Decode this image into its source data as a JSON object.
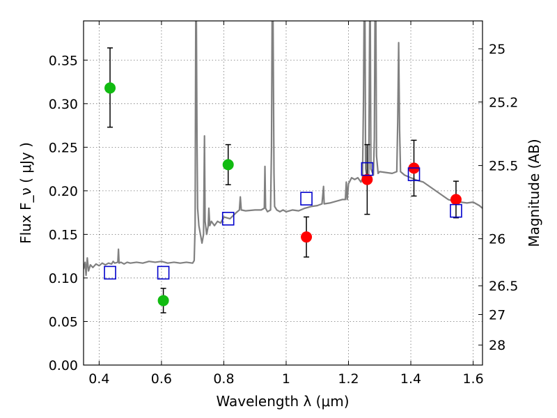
{
  "chart_data": {
    "type": "scatter",
    "xlabel": "Wavelength  λ (μm)",
    "ylabel": "Flux  F_ν  ( μJy )",
    "ylabel_right": "Magnitude (AB)",
    "xlim": [
      0.35,
      1.63
    ],
    "ylim": [
      0.0,
      0.395
    ],
    "x_ticks": [
      0.4,
      0.6,
      0.8,
      1.0,
      1.2,
      1.4,
      1.6
    ],
    "x_tick_labels": [
      "0.4",
      "0.6",
      "0.8",
      "1",
      "1.2",
      "1.4",
      "1.6"
    ],
    "y_ticks": [
      0.0,
      0.05,
      0.1,
      0.15,
      0.2,
      0.25,
      0.3,
      0.35
    ],
    "y_tick_labels": [
      "0.00",
      "0.05",
      "0.10",
      "0.15",
      "0.20",
      "0.25",
      "0.30",
      "0.35"
    ],
    "right_ticks": [
      {
        "label": "25",
        "flux": 0.363
      },
      {
        "label": "25.2",
        "flux": 0.302
      },
      {
        "label": "25.5",
        "flux": 0.229
      },
      {
        "label": "26",
        "flux": 0.145
      },
      {
        "label": "26.5",
        "flux": 0.091
      },
      {
        "label": "27",
        "flux": 0.058
      },
      {
        "label": "28",
        "flux": 0.023
      }
    ],
    "grid": true,
    "series": [
      {
        "color": "#11bb11",
        "marker": "circle",
        "points": [
          {
            "x": 0.435,
            "y": 0.318,
            "err": [
              0.273,
              0.364
            ]
          },
          {
            "x": 0.606,
            "y": 0.074,
            "err": [
              0.06,
              0.088
            ]
          },
          {
            "x": 0.814,
            "y": 0.23,
            "err": [
              0.207,
              0.253
            ]
          }
        ]
      },
      {
        "color": "#ff0000",
        "marker": "circle",
        "points": [
          {
            "x": 1.065,
            "y": 0.147,
            "err": [
              0.124,
              0.17
            ]
          },
          {
            "x": 1.26,
            "y": 0.213,
            "err": [
              0.173,
              0.253
            ]
          },
          {
            "x": 1.41,
            "y": 0.226,
            "err": [
              0.194,
              0.258
            ]
          },
          {
            "x": 1.545,
            "y": 0.19,
            "err": [
              0.169,
              0.211
            ]
          }
        ]
      },
      {
        "color": "#0000cc",
        "marker": "square-open",
        "points": [
          {
            "x": 0.435,
            "y": 0.106
          },
          {
            "x": 0.606,
            "y": 0.106
          },
          {
            "x": 0.814,
            "y": 0.168
          },
          {
            "x": 1.065,
            "y": 0.191
          },
          {
            "x": 1.26,
            "y": 0.225
          },
          {
            "x": 1.41,
            "y": 0.219
          },
          {
            "x": 1.545,
            "y": 0.177
          }
        ]
      }
    ],
    "model_spectrum": {
      "color": "#808080",
      "points": [
        [
          0.35,
          0.11
        ],
        [
          0.355,
          0.118
        ],
        [
          0.358,
          0.103
        ],
        [
          0.362,
          0.123
        ],
        [
          0.366,
          0.108
        ],
        [
          0.372,
          0.115
        ],
        [
          0.38,
          0.112
        ],
        [
          0.39,
          0.116
        ],
        [
          0.4,
          0.114
        ],
        [
          0.41,
          0.117
        ],
        [
          0.42,
          0.115
        ],
        [
          0.43,
          0.117
        ],
        [
          0.44,
          0.116
        ],
        [
          0.445,
          0.119
        ],
        [
          0.45,
          0.117
        ],
        [
          0.46,
          0.118
        ],
        [
          0.462,
          0.133
        ],
        [
          0.464,
          0.117
        ],
        [
          0.47,
          0.118
        ],
        [
          0.48,
          0.116
        ],
        [
          0.49,
          0.118
        ],
        [
          0.5,
          0.117
        ],
        [
          0.52,
          0.118
        ],
        [
          0.54,
          0.117
        ],
        [
          0.56,
          0.119
        ],
        [
          0.58,
          0.118
        ],
        [
          0.6,
          0.119
        ],
        [
          0.62,
          0.117
        ],
        [
          0.64,
          0.118
        ],
        [
          0.66,
          0.117
        ],
        [
          0.68,
          0.118
        ],
        [
          0.7,
          0.117
        ],
        [
          0.705,
          0.12
        ],
        [
          0.708,
          0.16
        ],
        [
          0.71,
          0.395
        ],
        [
          0.712,
          0.395
        ],
        [
          0.714,
          0.26
        ],
        [
          0.716,
          0.18
        ],
        [
          0.72,
          0.16
        ],
        [
          0.725,
          0.15
        ],
        [
          0.73,
          0.14
        ],
        [
          0.735,
          0.15
        ],
        [
          0.738,
          0.263
        ],
        [
          0.74,
          0.165
        ],
        [
          0.745,
          0.15
        ],
        [
          0.75,
          0.16
        ],
        [
          0.752,
          0.18
        ],
        [
          0.755,
          0.16
        ],
        [
          0.76,
          0.165
        ],
        [
          0.77,
          0.16
        ],
        [
          0.78,
          0.165
        ],
        [
          0.79,
          0.163
        ],
        [
          0.8,
          0.17
        ],
        [
          0.82,
          0.168
        ],
        [
          0.84,
          0.175
        ],
        [
          0.85,
          0.178
        ],
        [
          0.853,
          0.193
        ],
        [
          0.856,
          0.178
        ],
        [
          0.87,
          0.177
        ],
        [
          0.9,
          0.178
        ],
        [
          0.92,
          0.178
        ],
        [
          0.93,
          0.18
        ],
        [
          0.932,
          0.228
        ],
        [
          0.934,
          0.18
        ],
        [
          0.94,
          0.176
        ],
        [
          0.95,
          0.178
        ],
        [
          0.953,
          0.25
        ],
        [
          0.955,
          0.395
        ],
        [
          0.958,
          0.395
        ],
        [
          0.961,
          0.22
        ],
        [
          0.963,
          0.182
        ],
        [
          0.97,
          0.178
        ],
        [
          0.98,
          0.176
        ],
        [
          0.99,
          0.178
        ],
        [
          1.0,
          0.176
        ],
        [
          1.02,
          0.178
        ],
        [
          1.04,
          0.177
        ],
        [
          1.06,
          0.18
        ],
        [
          1.08,
          0.182
        ],
        [
          1.1,
          0.183
        ],
        [
          1.115,
          0.185
        ],
        [
          1.12,
          0.205
        ],
        [
          1.122,
          0.185
        ],
        [
          1.14,
          0.186
        ],
        [
          1.16,
          0.188
        ],
        [
          1.18,
          0.19
        ],
        [
          1.19,
          0.19
        ],
        [
          1.193,
          0.21
        ],
        [
          1.196,
          0.19
        ],
        [
          1.2,
          0.208
        ],
        [
          1.21,
          0.215
        ],
        [
          1.22,
          0.213
        ],
        [
          1.23,
          0.215
        ],
        [
          1.24,
          0.21
        ],
        [
          1.245,
          0.214
        ],
        [
          1.248,
          0.3
        ],
        [
          1.25,
          0.395
        ],
        [
          1.253,
          0.395
        ],
        [
          1.255,
          0.225
        ],
        [
          1.258,
          0.218
        ],
        [
          1.262,
          0.215
        ],
        [
          1.265,
          0.22
        ],
        [
          1.268,
          0.395
        ],
        [
          1.27,
          0.395
        ],
        [
          1.272,
          0.225
        ],
        [
          1.28,
          0.218
        ],
        [
          1.283,
          0.26
        ],
        [
          1.285,
          0.395
        ],
        [
          1.288,
          0.395
        ],
        [
          1.29,
          0.24
        ],
        [
          1.295,
          0.22
        ],
        [
          1.3,
          0.222
        ],
        [
          1.32,
          0.221
        ],
        [
          1.34,
          0.22
        ],
        [
          1.355,
          0.222
        ],
        [
          1.358,
          0.28
        ],
        [
          1.361,
          0.37
        ],
        [
          1.364,
          0.27
        ],
        [
          1.367,
          0.222
        ],
        [
          1.38,
          0.218
        ],
        [
          1.4,
          0.215
        ],
        [
          1.42,
          0.212
        ],
        [
          1.44,
          0.21
        ],
        [
          1.46,
          0.205
        ],
        [
          1.48,
          0.2
        ],
        [
          1.5,
          0.195
        ],
        [
          1.52,
          0.19
        ],
        [
          1.54,
          0.188
        ],
        [
          1.56,
          0.187
        ],
        [
          1.58,
          0.186
        ],
        [
          1.6,
          0.187
        ],
        [
          1.62,
          0.183
        ],
        [
          1.63,
          0.18
        ]
      ]
    }
  }
}
